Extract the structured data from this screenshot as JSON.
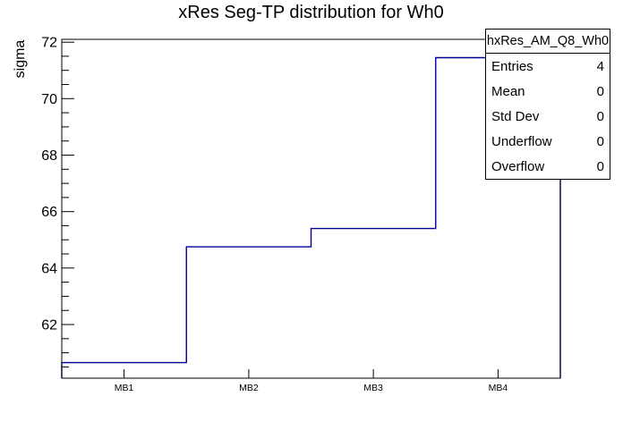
{
  "chart_data": {
    "type": "line",
    "step": true,
    "title": "xRes Seg-TP distribution for Wh0",
    "xlabel": "",
    "ylabel": "sigma",
    "categories": [
      "MB1",
      "MB2",
      "MB3",
      "MB4"
    ],
    "values": [
      60.65,
      64.75,
      65.4,
      71.45
    ],
    "ylim": [
      60.1,
      72.1
    ],
    "yticks": [
      62,
      64,
      66,
      68,
      70,
      72
    ],
    "minor_tick_step": 0.5,
    "grid": false,
    "legend_position": "none",
    "line_color": "#000099",
    "frame_color": "#000000",
    "background_color": "#ffffff"
  },
  "stats_box": {
    "title": "hxRes_AM_Q8_Wh0",
    "rows": [
      {
        "label": "Entries",
        "value": "4"
      },
      {
        "label": "Mean",
        "value": "0"
      },
      {
        "label": "Std Dev",
        "value": "0"
      },
      {
        "label": "Underflow",
        "value": "0"
      },
      {
        "label": "Overflow",
        "value": "0"
      }
    ]
  }
}
